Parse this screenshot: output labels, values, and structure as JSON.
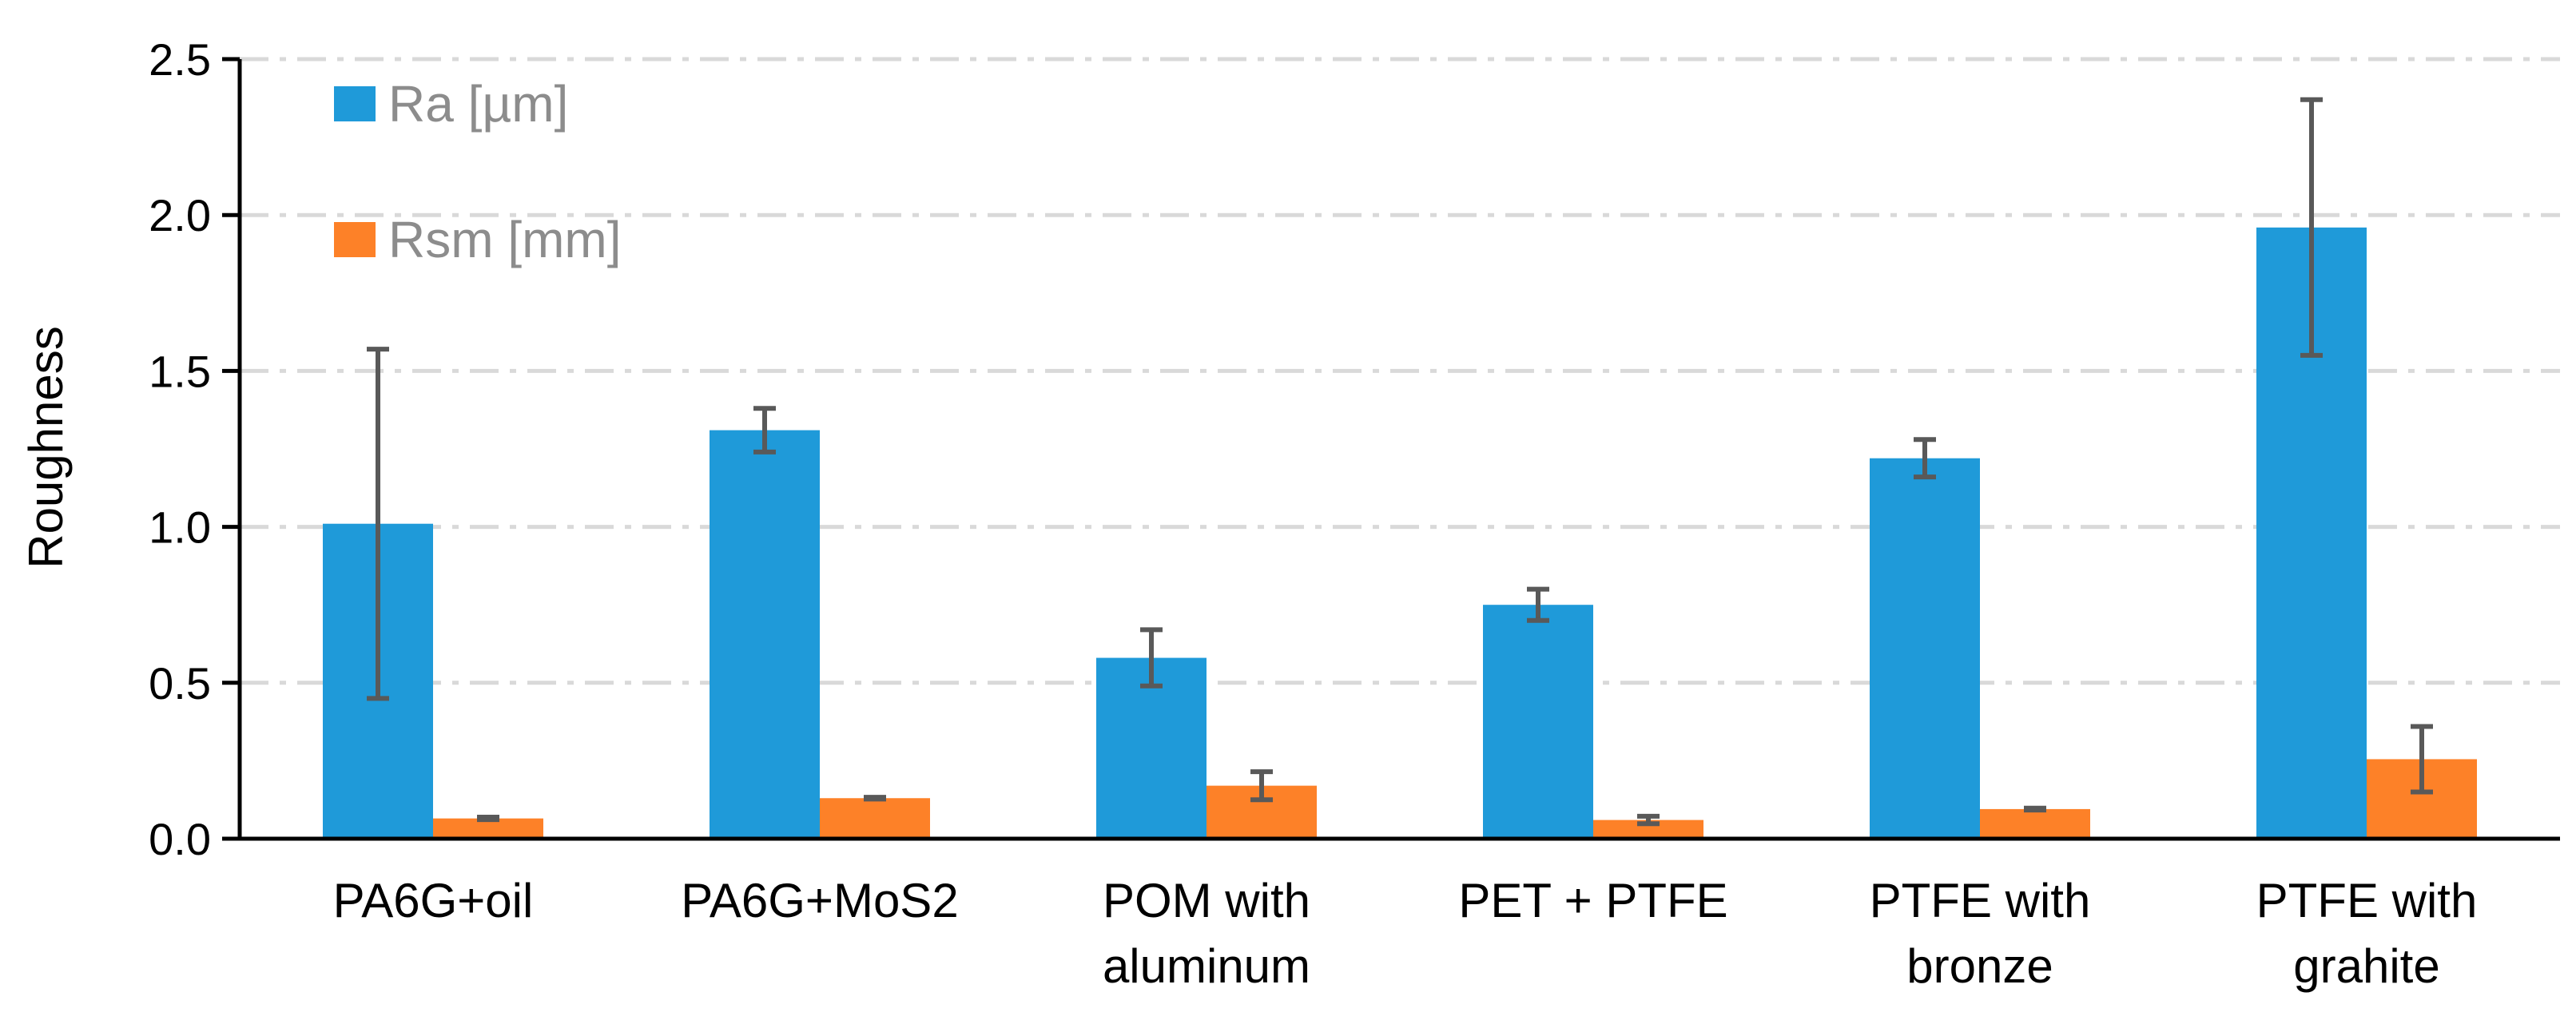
{
  "chart_data": {
    "type": "bar",
    "title": "",
    "xlabel": "",
    "ylabel": "Roughness",
    "ylim": [
      0,
      2.5
    ],
    "yticks": [
      "0.0",
      "0.5",
      "1.0",
      "1.5",
      "2.0",
      "2.5"
    ],
    "grid": true,
    "legend_position": "top-left",
    "categories": [
      [
        "PA6G+oil"
      ],
      [
        "PA6G+MoS2"
      ],
      [
        "POM with",
        "aluminum"
      ],
      [
        "PET + PTFE"
      ],
      [
        "PTFE with",
        "bronze"
      ],
      [
        "PTFE with",
        "grahite"
      ]
    ],
    "series": [
      {
        "name": "Ra [µm]",
        "color": "#1f9ad9",
        "values": [
          1.01,
          1.31,
          0.58,
          0.75,
          1.22,
          1.96
        ],
        "errors": [
          0.56,
          0.07,
          0.09,
          0.05,
          0.06,
          0.41
        ]
      },
      {
        "name": "Rsm [mm]",
        "color": "#fd8128",
        "values": [
          0.065,
          0.13,
          0.17,
          0.06,
          0.095,
          0.255
        ],
        "errors": [
          0.004,
          0.003,
          0.045,
          0.012,
          0.003,
          0.105
        ]
      }
    ]
  }
}
